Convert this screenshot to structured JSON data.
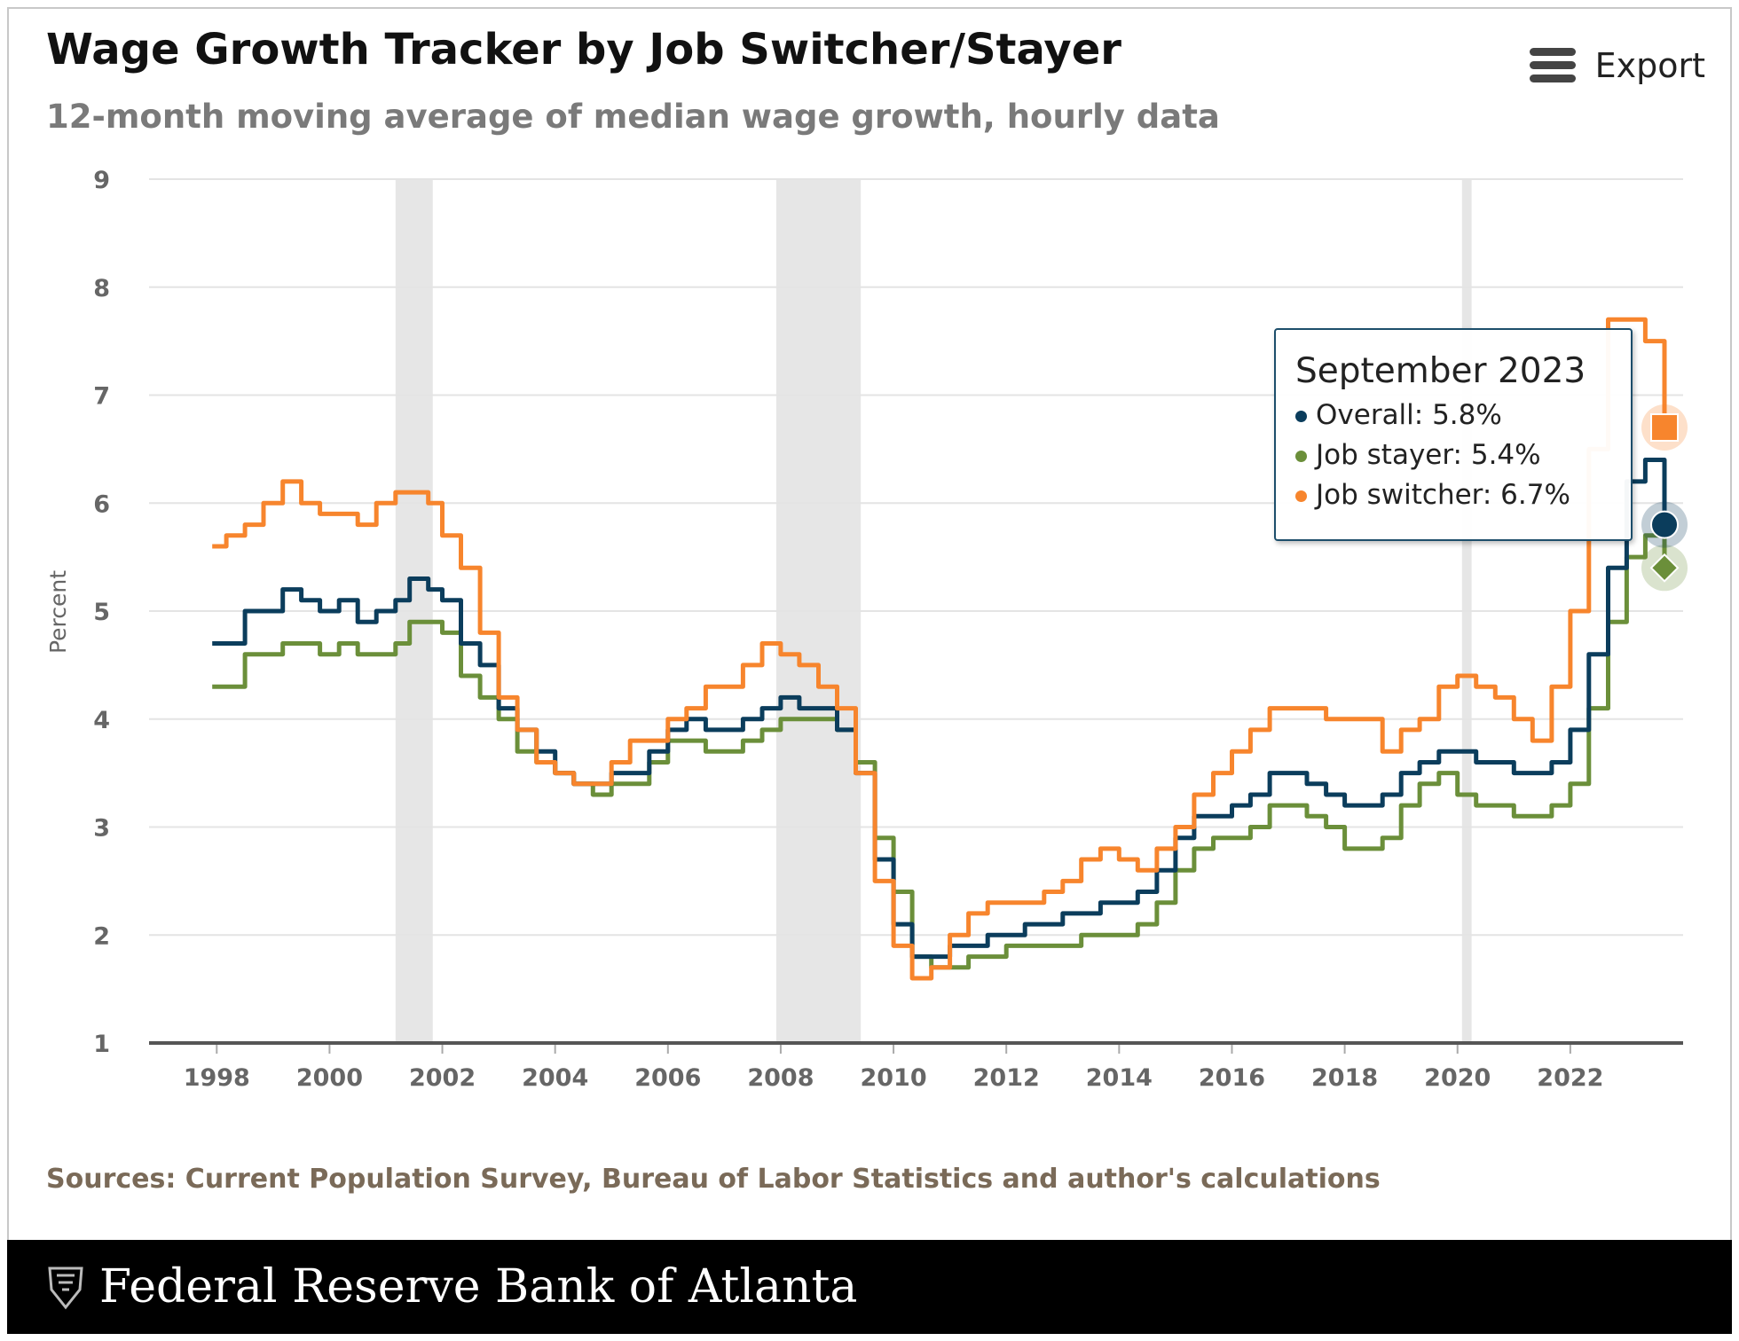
{
  "title": "Wage Growth Tracker by Job Switcher/Stayer",
  "subtitle": "12-month moving average of median wage growth, hourly data",
  "export_label": "Export",
  "sources": "Sources: Current Population Survey, Bureau of Labor Statistics and author's calculations",
  "footer": {
    "org_name": "Federal Reserve Bank of Atlanta"
  },
  "tooltip": {
    "title": "September 2023",
    "rows": [
      {
        "label": "Overall: 5.8%",
        "color": "#0b3d5c"
      },
      {
        "label": "Job stayer: 5.4%",
        "color": "#6b8f3a"
      },
      {
        "label": "Job switcher: 6.7%",
        "color": "#f7852d"
      }
    ]
  },
  "colors": {
    "overall": "#0b3d5c",
    "stayer": "#6b8f3a",
    "switcher": "#f7852d",
    "recession": "#e6e6e6"
  },
  "icons": {
    "menu": "hamburger-menu-icon",
    "seal": "fed-eagle-seal-icon"
  },
  "chart_data": {
    "type": "line",
    "title": "Wage Growth Tracker by Job Switcher/Stayer",
    "subtitle": "12-month moving average of median wage growth, hourly data",
    "xlabel": "",
    "ylabel": "Percent",
    "xlim": [
      1996.8,
      2024.0
    ],
    "ylim": [
      1,
      9
    ],
    "y_ticks": [
      1,
      2,
      3,
      4,
      5,
      6,
      7,
      8,
      9
    ],
    "x_ticks": [
      1998,
      2000,
      2002,
      2004,
      2006,
      2008,
      2010,
      2012,
      2014,
      2016,
      2018,
      2020,
      2022
    ],
    "grid": true,
    "legend": "none",
    "recession_bands": [
      [
        2001.17,
        2001.83
      ],
      [
        2007.92,
        2009.42
      ],
      [
        2020.08,
        2020.25
      ]
    ],
    "series": [
      {
        "name": "Overall",
        "x": [
          1997.92,
          1998.17,
          1998.5,
          1998.83,
          1999.17,
          1999.5,
          1999.83,
          2000.17,
          2000.5,
          2000.83,
          2001.17,
          2001.42,
          2001.75,
          2002.0,
          2002.33,
          2002.67,
          2003.0,
          2003.33,
          2003.67,
          2004.0,
          2004.33,
          2004.67,
          2005.0,
          2005.33,
          2005.67,
          2006.0,
          2006.33,
          2006.67,
          2007.0,
          2007.33,
          2007.67,
          2008.0,
          2008.33,
          2008.67,
          2009.0,
          2009.33,
          2009.67,
          2010.0,
          2010.33,
          2010.67,
          2011.0,
          2011.33,
          2011.67,
          2012.0,
          2012.33,
          2012.67,
          2013.0,
          2013.33,
          2013.67,
          2014.0,
          2014.33,
          2014.67,
          2015.0,
          2015.33,
          2015.67,
          2016.0,
          2016.33,
          2016.67,
          2017.0,
          2017.33,
          2017.67,
          2018.0,
          2018.33,
          2018.67,
          2019.0,
          2019.33,
          2019.67,
          2020.0,
          2020.33,
          2020.67,
          2021.0,
          2021.33,
          2021.67,
          2022.0,
          2022.33,
          2022.67,
          2023.0,
          2023.33,
          2023.67
        ],
        "values": [
          4.7,
          4.7,
          5.0,
          5.0,
          5.2,
          5.1,
          5.0,
          5.1,
          4.9,
          5.0,
          5.1,
          5.3,
          5.2,
          5.1,
          4.7,
          4.5,
          4.1,
          3.9,
          3.7,
          3.5,
          3.4,
          3.4,
          3.5,
          3.5,
          3.7,
          3.9,
          4.0,
          3.9,
          3.9,
          4.0,
          4.1,
          4.2,
          4.1,
          4.1,
          3.9,
          3.5,
          2.7,
          2.1,
          1.8,
          1.8,
          1.9,
          1.9,
          2.0,
          2.0,
          2.1,
          2.1,
          2.2,
          2.2,
          2.3,
          2.3,
          2.4,
          2.6,
          2.9,
          3.1,
          3.1,
          3.2,
          3.3,
          3.5,
          3.5,
          3.4,
          3.3,
          3.2,
          3.2,
          3.3,
          3.5,
          3.6,
          3.7,
          3.7,
          3.6,
          3.6,
          3.5,
          3.5,
          3.6,
          3.9,
          4.6,
          5.4,
          6.2,
          6.4,
          5.8
        ]
      },
      {
        "name": "Job stayer",
        "x": [
          1997.92,
          1998.17,
          1998.5,
          1998.83,
          1999.17,
          1999.5,
          1999.83,
          2000.17,
          2000.5,
          2000.83,
          2001.17,
          2001.42,
          2001.75,
          2002.0,
          2002.33,
          2002.67,
          2003.0,
          2003.33,
          2003.67,
          2004.0,
          2004.33,
          2004.67,
          2005.0,
          2005.33,
          2005.67,
          2006.0,
          2006.33,
          2006.67,
          2007.0,
          2007.33,
          2007.67,
          2008.0,
          2008.33,
          2008.67,
          2009.0,
          2009.33,
          2009.67,
          2010.0,
          2010.33,
          2010.67,
          2011.0,
          2011.33,
          2011.67,
          2012.0,
          2012.33,
          2012.67,
          2013.0,
          2013.33,
          2013.67,
          2014.0,
          2014.33,
          2014.67,
          2015.0,
          2015.33,
          2015.67,
          2016.0,
          2016.33,
          2016.67,
          2017.0,
          2017.33,
          2017.67,
          2018.0,
          2018.33,
          2018.67,
          2019.0,
          2019.33,
          2019.67,
          2020.0,
          2020.33,
          2020.67,
          2021.0,
          2021.33,
          2021.67,
          2022.0,
          2022.33,
          2022.67,
          2023.0,
          2023.33,
          2023.67
        ],
        "values": [
          4.3,
          4.3,
          4.6,
          4.6,
          4.7,
          4.7,
          4.6,
          4.7,
          4.6,
          4.6,
          4.7,
          4.9,
          4.9,
          4.8,
          4.4,
          4.2,
          4.0,
          3.7,
          3.6,
          3.5,
          3.4,
          3.3,
          3.4,
          3.4,
          3.6,
          3.8,
          3.8,
          3.7,
          3.7,
          3.8,
          3.9,
          4.0,
          4.0,
          4.0,
          3.9,
          3.6,
          2.9,
          2.4,
          1.8,
          1.7,
          1.7,
          1.8,
          1.8,
          1.9,
          1.9,
          1.9,
          1.9,
          2.0,
          2.0,
          2.0,
          2.1,
          2.3,
          2.6,
          2.8,
          2.9,
          2.9,
          3.0,
          3.2,
          3.2,
          3.1,
          3.0,
          2.8,
          2.8,
          2.9,
          3.2,
          3.4,
          3.5,
          3.3,
          3.2,
          3.2,
          3.1,
          3.1,
          3.2,
          3.4,
          4.1,
          4.9,
          5.5,
          5.7,
          5.4
        ]
      },
      {
        "name": "Job switcher",
        "x": [
          1997.92,
          1998.17,
          1998.5,
          1998.83,
          1999.17,
          1999.5,
          1999.83,
          2000.17,
          2000.5,
          2000.83,
          2001.17,
          2001.42,
          2001.75,
          2002.0,
          2002.33,
          2002.67,
          2003.0,
          2003.33,
          2003.67,
          2004.0,
          2004.33,
          2004.67,
          2005.0,
          2005.33,
          2005.67,
          2006.0,
          2006.33,
          2006.67,
          2007.0,
          2007.33,
          2007.67,
          2008.0,
          2008.33,
          2008.67,
          2009.0,
          2009.33,
          2009.67,
          2010.0,
          2010.33,
          2010.67,
          2011.0,
          2011.33,
          2011.67,
          2012.0,
          2012.33,
          2012.67,
          2013.0,
          2013.33,
          2013.67,
          2014.0,
          2014.33,
          2014.67,
          2015.0,
          2015.33,
          2015.67,
          2016.0,
          2016.33,
          2016.67,
          2017.0,
          2017.33,
          2017.67,
          2018.0,
          2018.33,
          2018.67,
          2019.0,
          2019.33,
          2019.67,
          2020.0,
          2020.33,
          2020.67,
          2021.0,
          2021.33,
          2021.67,
          2022.0,
          2022.33,
          2022.67,
          2023.0,
          2023.33,
          2023.67
        ],
        "values": [
          5.6,
          5.7,
          5.8,
          6.0,
          6.2,
          6.0,
          5.9,
          5.9,
          5.8,
          6.0,
          6.1,
          6.1,
          6.0,
          5.7,
          5.4,
          4.8,
          4.2,
          3.9,
          3.6,
          3.5,
          3.4,
          3.4,
          3.6,
          3.8,
          3.8,
          4.0,
          4.1,
          4.3,
          4.3,
          4.5,
          4.7,
          4.6,
          4.5,
          4.3,
          4.1,
          3.5,
          2.5,
          1.9,
          1.6,
          1.7,
          2.0,
          2.2,
          2.3,
          2.3,
          2.3,
          2.4,
          2.5,
          2.7,
          2.8,
          2.7,
          2.6,
          2.8,
          3.0,
          3.3,
          3.5,
          3.7,
          3.9,
          4.1,
          4.1,
          4.1,
          4.0,
          4.0,
          4.0,
          3.7,
          3.9,
          4.0,
          4.3,
          4.4,
          4.3,
          4.2,
          4.0,
          3.8,
          4.3,
          5.0,
          6.5,
          7.7,
          7.7,
          7.5,
          6.7
        ]
      }
    ]
  }
}
